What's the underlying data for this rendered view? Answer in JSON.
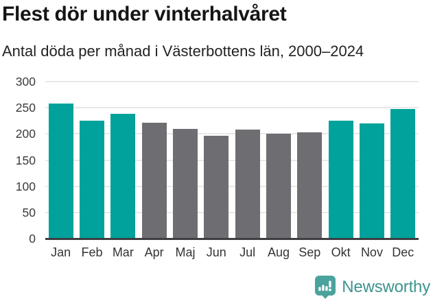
{
  "chart_data": {
    "type": "bar",
    "title": "Flest dör under vinterhalvåret",
    "subtitle": "Antal döda per månad i Västerbottens län, 2000–2024",
    "categories": [
      "Jan",
      "Feb",
      "Mar",
      "Apr",
      "Maj",
      "Jun",
      "Jul",
      "Aug",
      "Sep",
      "Okt",
      "Nov",
      "Dec"
    ],
    "values": [
      258,
      225,
      238,
      221,
      210,
      196,
      208,
      201,
      203,
      225,
      220,
      247
    ],
    "highlight": [
      true,
      true,
      true,
      false,
      false,
      false,
      false,
      false,
      false,
      true,
      true,
      true
    ],
    "colors": {
      "highlight": "#00a29b",
      "default": "#6e6e72"
    },
    "xlabel": "",
    "ylabel": "",
    "ylim": [
      0,
      300
    ],
    "yticks": [
      0,
      50,
      100,
      150,
      200,
      250,
      300
    ],
    "grid": "horizontal",
    "legend": "none"
  },
  "footer": {
    "brand": "Newsworthy",
    "brand_color": "#3e948e",
    "logo_color": "#4aa39d",
    "logo_icon": "newsworthy-speech-bubble-barchart-icon"
  }
}
